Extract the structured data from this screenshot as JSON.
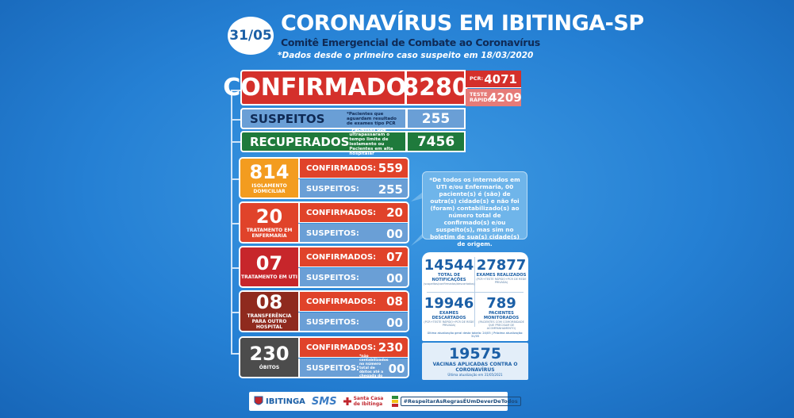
{
  "header": {
    "date": "31/05",
    "title": "CORONAVÍRUS EM IBITINGA-SP",
    "subtitle": "Comitê Emergencial de Combate ao Coronavírus",
    "since": "*Dados desde o primeiro caso suspeito em 18/03/2020"
  },
  "confirmados": {
    "label": "CONFIRMADOS",
    "value": "8280",
    "pcr_label": "PCR:",
    "pcr_value": "4071",
    "rapido_label": "TESTE RÁPIDO:",
    "rapido_value": "4209"
  },
  "suspeitos": {
    "label": "SUSPEITOS",
    "note": "*Pacientes que aguardam resultado de exames tipo PCR",
    "value": "255"
  },
  "recuperados": {
    "label": "RECUPERADOS",
    "note": "*Pacientes que ultrapassaram o tempo limite de isolamento ou Pacientes em alta hospitalar",
    "value": "7456"
  },
  "groups": [
    {
      "value": "814",
      "caption": "ISOLAMENTO DOMICILIAR",
      "color": "#f39c1f",
      "confirmed_label": "CONFIRMADOS:",
      "confirmed_value": "559",
      "suspect_label": "SUSPEITOS:",
      "suspect_value": "255"
    },
    {
      "value": "20",
      "caption": "TRATAMENTO EM ENFERMARIA",
      "color": "#e0432a",
      "confirmed_label": "CONFIRMADOS:",
      "confirmed_value": "20",
      "suspect_label": "SUSPEITOS:",
      "suspect_value": "00"
    },
    {
      "value": "07",
      "caption": "TRATAMENTO EM UTI",
      "color": "#c7262b",
      "confirmed_label": "CONFIRMADOS:",
      "confirmed_value": "07",
      "suspect_label": "SUSPEITOS:",
      "suspect_value": "00"
    },
    {
      "value": "08",
      "caption": "TRANSFERÊNCIA PARA OUTRO HOSPITAL",
      "color": "#8f2a1e",
      "confirmed_label": "CONFIRMADOS:",
      "confirmed_value": "08",
      "suspect_label": "SUSPEITOS:",
      "suspect_value": "00"
    },
    {
      "value": "230",
      "caption": "ÓBITOS",
      "color": "#4c4c4c",
      "confirmed_label": "CONFIRMADOS:",
      "confirmed_value": "230",
      "suspect_label": "SUSPEITOS:",
      "suspect_note": "*não contabilizados no número total de óbitos até a chegada do resultado",
      "suspect_value": "00"
    }
  ],
  "bubble": {
    "text": "*De todos os internados em UTI e/ou Enfermaria, 00 paciente(s) é (são) de outra(s) cidade(s) e não foi (foram) contabilizado(s) ao número total de confirmado(s) e/ou suspeito(s), mas sim no boletim de sua(s) cidade(s) de origem."
  },
  "stats": {
    "notificacoes_value": "14544",
    "notificacoes_label": "TOTAL DE NOTIFICAÇÕES",
    "notificacoes_note": "(suspeitos/confirmados/descartados)",
    "exames_value": "27877",
    "exames_label": "EXAMES REALIZADOS",
    "exames_note": "(PCR+TESTE RÁPIDO+PCR DE REDE PRIVADA)",
    "descartados_value": "19946",
    "descartados_label": "EXAMES DESCARTADOS",
    "descartados_note": "(PCR+TESTE RÁPIDO+PCR DE REDE PRIVADA)",
    "monitorados_value": "789",
    "monitorados_label": "PACIENTES MONITORADOS",
    "monitorados_note": "(PACIENTES COM COMORBIDADE QUE PRECISAM DE ACOMPANHAMENTO)",
    "footer": "Última atualização geral desta tabela: 24/05 | Próxima atualização: 31/05"
  },
  "vacinas": {
    "value": "19575",
    "label": "VACINAS APLICADAS CONTRA O CORONAVÍRUS",
    "note": "Última atualização em 31/05/2021"
  },
  "footer": {
    "ibitinga": "IBITINGA",
    "sms": "SMS",
    "santa_casa": "Santa Casa de Ibitinga",
    "hashtag": "#RespeitarAsRegrasÉUmDeverDeTodos"
  }
}
